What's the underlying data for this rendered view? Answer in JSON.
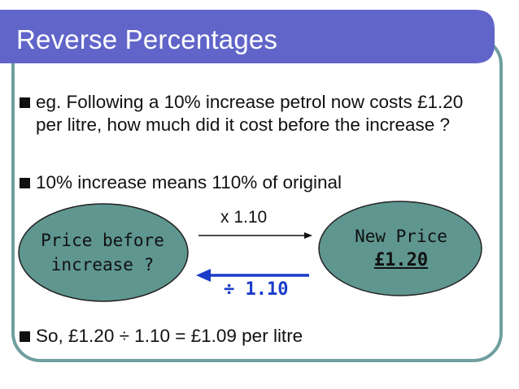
{
  "title": "Reverse Percentages",
  "bullets": [
    {
      "text": "eg. Following a 10% increase petrol now costs £1.20 per litre, how much did it cost before the increase ?"
    },
    {
      "text": "10% increase means 110% of original"
    },
    {
      "text": "So, £1.20 ÷ 1.10 = £1.09 per litre"
    }
  ],
  "diagram": {
    "left_oval": {
      "line1": "Price before",
      "line2": "increase ?"
    },
    "right_oval": {
      "line1": "New Price",
      "line2": "£1.20"
    },
    "forward_label": "x 1.10",
    "reverse_label": "÷ 1.10"
  },
  "colors": {
    "title_bar": "#6165c9",
    "frame": "#6f9f9e",
    "oval_fill": "#5f9690",
    "reverse_arrow": "#1a3cc8"
  }
}
